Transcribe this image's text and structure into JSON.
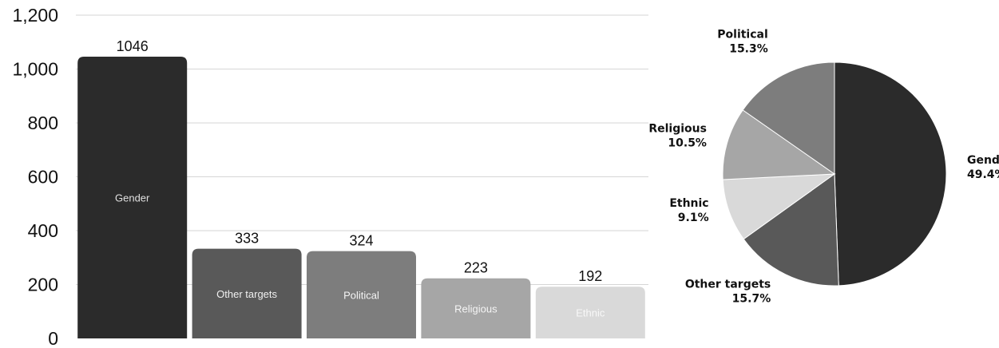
{
  "chart_data": [
    {
      "type": "bar",
      "categories": [
        "Gender",
        "Other targets",
        "Political",
        "Religious",
        "Ethnic"
      ],
      "values": [
        1046,
        333,
        324,
        223,
        192
      ],
      "ylim": [
        0,
        1200
      ],
      "yticks": [
        "0",
        "200",
        "400",
        "600",
        "800",
        "1,000",
        "1,200"
      ],
      "ytick_values": [
        0,
        200,
        400,
        600,
        800,
        1000,
        1200
      ],
      "grid": true,
      "colors": [
        "#2b2b2b",
        "#595959",
        "#7d7d7d",
        "#a6a6a6",
        "#d9d9d9"
      ],
      "label_colors": [
        "#e0e0e0",
        "#f0f0f0",
        "#f5f5f5",
        "#f5f5f5",
        "#f8f8f8"
      ]
    },
    {
      "type": "pie",
      "labels": [
        "Gender",
        "Other targets",
        "Ethnic",
        "Religious",
        "Political"
      ],
      "percent_labels": [
        "49.4%",
        "15.7%",
        "9.1%",
        "10.5%",
        "15.3%"
      ],
      "values": [
        49.4,
        15.7,
        9.1,
        10.5,
        15.3
      ],
      "colors": [
        "#2b2b2b",
        "#595959",
        "#d9d9d9",
        "#a6a6a6",
        "#7d7d7d"
      ]
    }
  ]
}
